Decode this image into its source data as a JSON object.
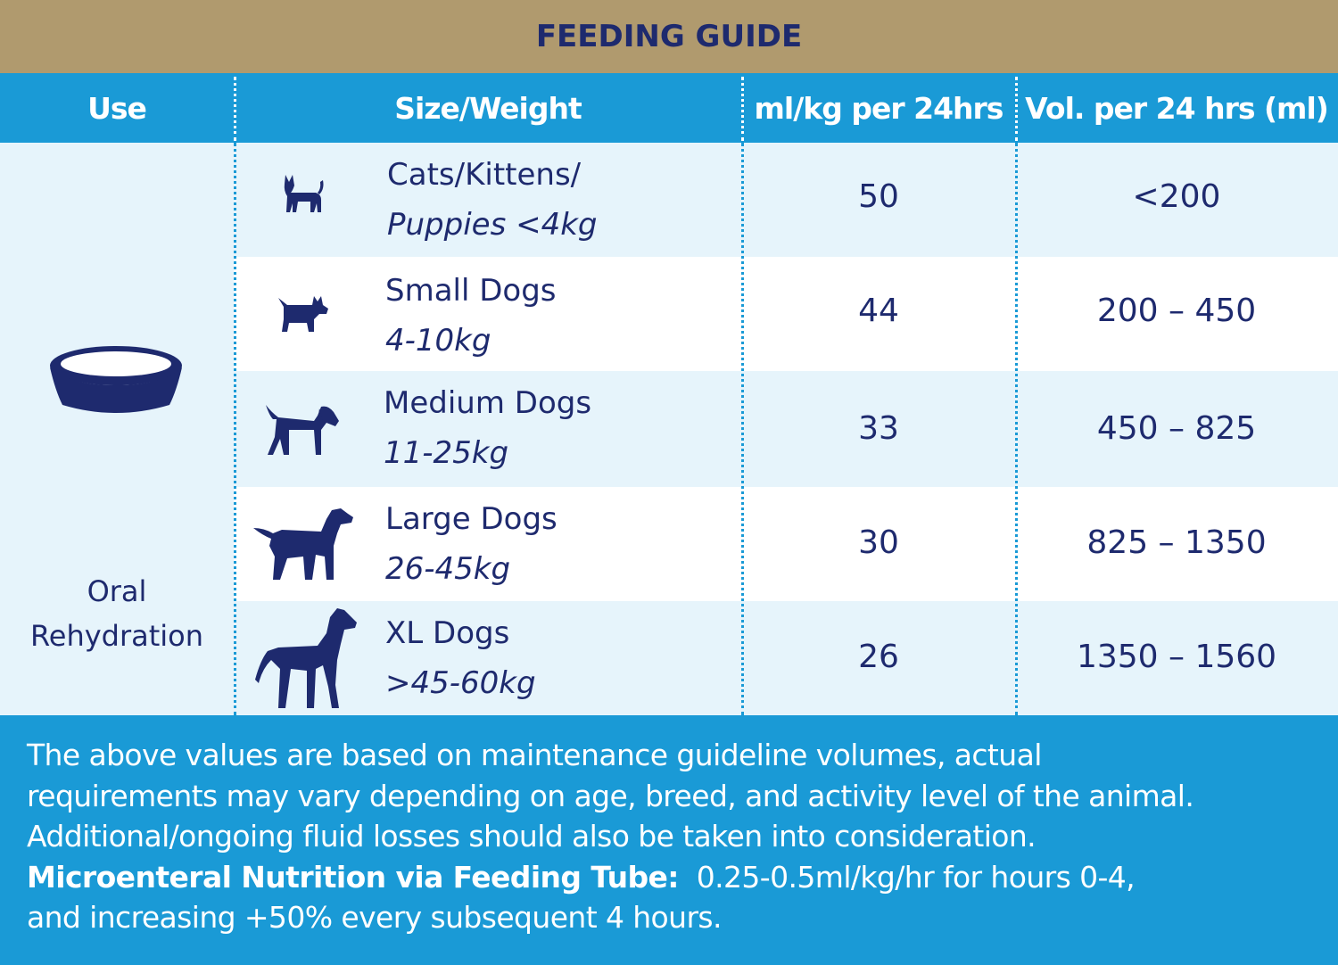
{
  "title": "FEEDING GUIDE",
  "headers": {
    "use": "Use",
    "size": "Size/Weight",
    "mlkg": "ml/kg per 24hrs",
    "vol": "Vol. per 24 hrs (ml)"
  },
  "use": {
    "line1": "Oral",
    "line2": "Rehydration",
    "icon": "bowl-icon"
  },
  "rows": [
    {
      "name_line1": "Cats/Kittens/",
      "name_line2": "Puppies <4kg",
      "mlkg": "50",
      "vol": "<200",
      "icon": "cat-icon"
    },
    {
      "name_line1": "Small Dogs",
      "name_line2": "4-10kg",
      "mlkg": "44",
      "vol": "200 – 450",
      "icon": "small-dog-icon"
    },
    {
      "name_line1": "Medium Dogs",
      "name_line2": "11-25kg",
      "mlkg": "33",
      "vol": "450 – 825",
      "icon": "medium-dog-icon"
    },
    {
      "name_line1": "Large Dogs",
      "name_line2": "26-45kg",
      "mlkg": "30",
      "vol": "825 – 1350",
      "icon": "large-dog-icon"
    },
    {
      "name_line1": "XL Dogs",
      "name_line2": ">45-60kg",
      "mlkg": "26",
      "vol": "1350 – 1560",
      "icon": "xl-dog-icon"
    }
  ],
  "footer": {
    "line1": "The above values are based on maintenance guideline volumes, actual",
    "line2": "requirements may vary depending on age, breed, and activity level of the animal.",
    "line3": "Additional/ongoing fluid losses should also be taken into consideration.",
    "bold_label": "Microenteral Nutrition via Feeding Tube:",
    "line4_rest": "0.25-0.5ml/kg/hr for hours 0-4,",
    "line5": "and increasing +50% every subsequent 4 hours."
  },
  "colors": {
    "title_band": "#b09a6e",
    "header_blue": "#1a9ad6",
    "navy": "#1e2a6e",
    "row_tint": "#e6f4fb"
  }
}
